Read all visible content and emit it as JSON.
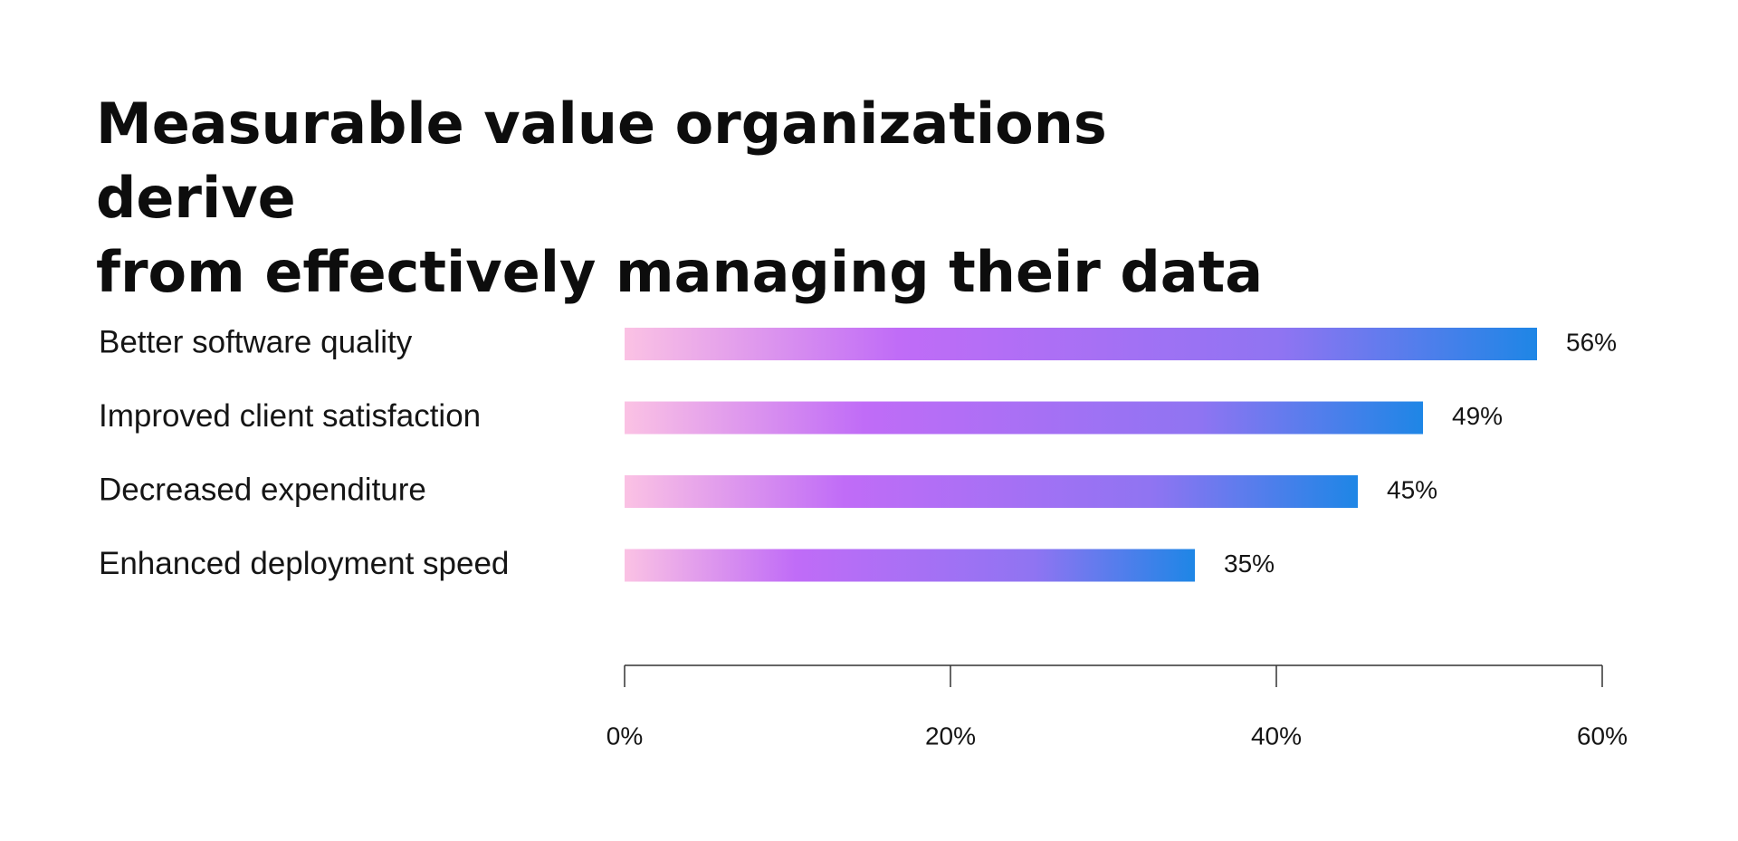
{
  "chart_data": {
    "type": "bar",
    "orientation": "horizontal",
    "title_lines": [
      "Measurable value organizations derive",
      "from effectively managing their data"
    ],
    "categories": [
      "Better software quality",
      "Improved client satisfaction",
      "Decreased expenditure",
      "Enhanced deployment speed"
    ],
    "values": [
      56,
      49,
      45,
      35
    ],
    "value_labels": [
      "56%",
      "49%",
      "45%",
      "35%"
    ],
    "xlim": [
      0,
      60
    ],
    "x_ticks": [
      0,
      20,
      40,
      60
    ],
    "x_tick_labels": [
      "0%",
      "20%",
      "40%",
      "60%"
    ],
    "grid": false,
    "legend": "none",
    "colors": {
      "bar_gradient": [
        "#fbc2e4",
        "#c06cf7",
        "#8f74f2",
        "#1e86e6"
      ],
      "text": "#151515",
      "axis": "#333333"
    }
  }
}
